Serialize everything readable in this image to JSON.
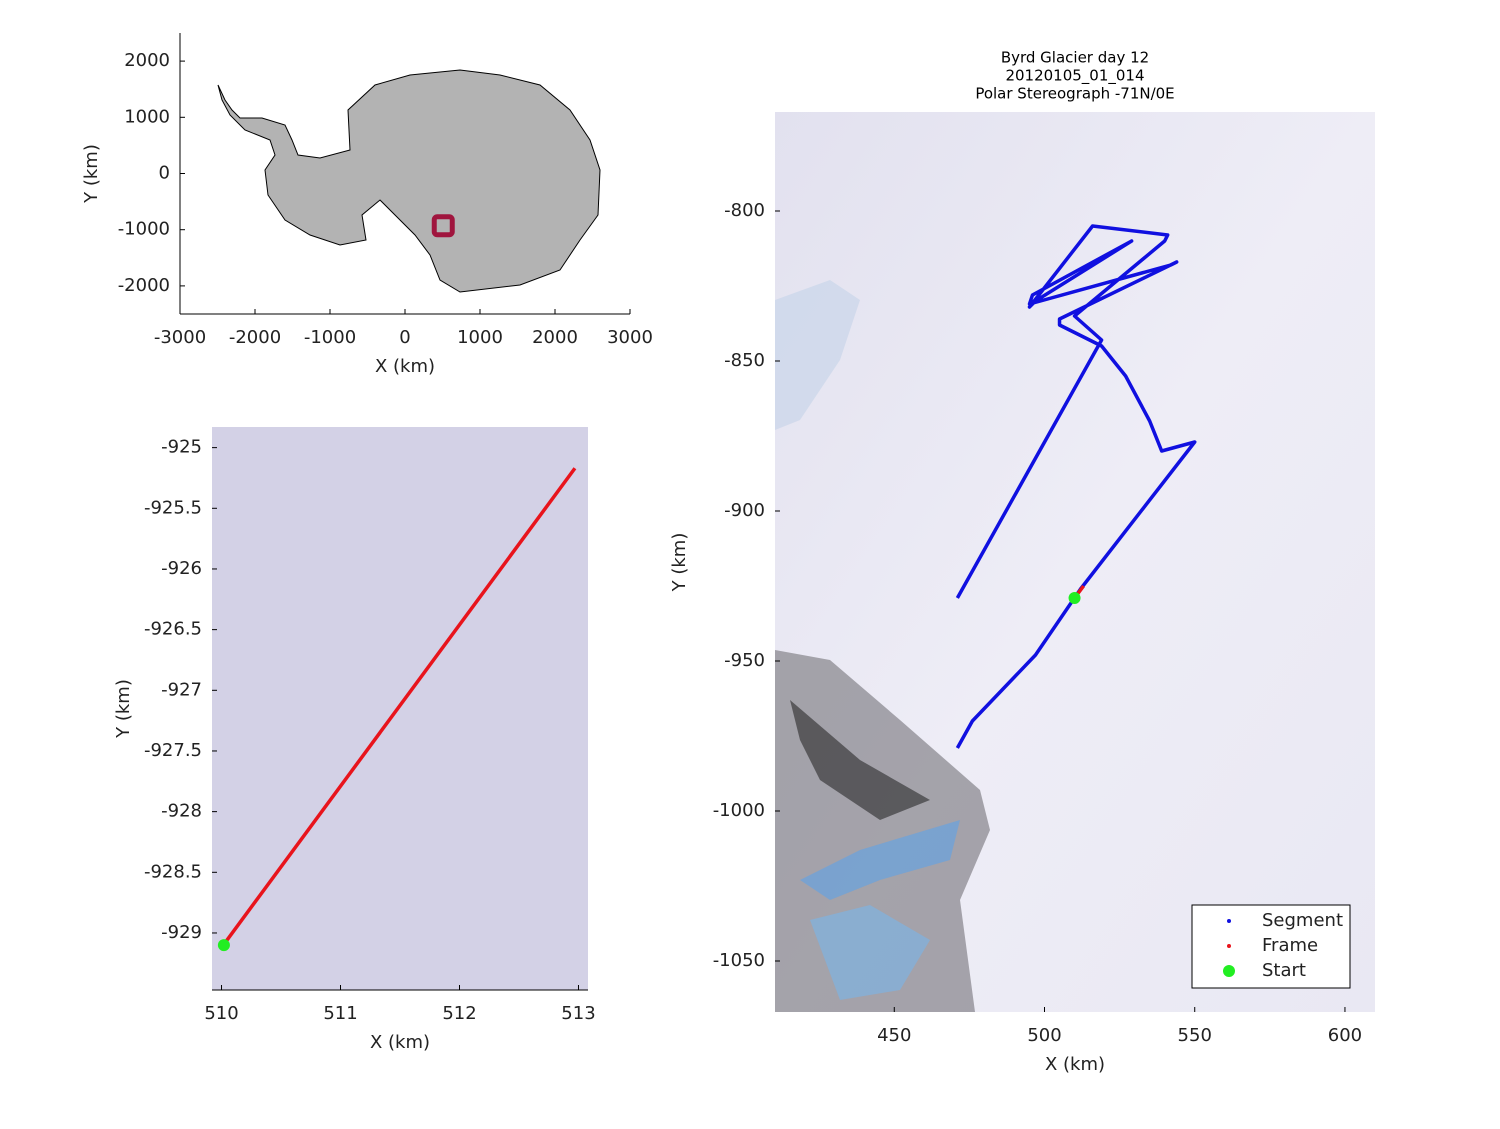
{
  "chart_data": [
    {
      "type": "map",
      "xlabel": "X (km)",
      "ylabel": "Y (km)",
      "xlim": [
        -3000,
        3000
      ],
      "ylim": [
        -2500,
        2500
      ],
      "xticks": [
        -3000,
        -2000,
        -1000,
        0,
        1000,
        2000,
        3000
      ],
      "yticks": [
        -2000,
        -1000,
        0,
        1000,
        2000
      ],
      "series": [
        {
          "color": "#a0153e",
          "mode": "square",
          "x": [
            510
          ],
          "values": [
            -929
          ]
        }
      ]
    },
    {
      "type": "line",
      "xlabel": "X (km)",
      "ylabel": "Y (km)",
      "xlim": [
        509.92,
        513.08
      ],
      "ylim": [
        -929.47,
        -924.83
      ],
      "xticks": [
        510,
        511,
        512,
        513
      ],
      "yticks": [
        -925,
        -925.5,
        -926,
        -926.5,
        -927,
        -927.5,
        -928,
        -928.5,
        -929
      ],
      "series": [
        {
          "color": "#e8141c",
          "mode": "line",
          "x": [
            510.03,
            512.97
          ],
          "values": [
            -929.08,
            -925.17
          ]
        },
        {
          "color": "#22ee22",
          "mode": "marker",
          "x": [
            510.02
          ],
          "values": [
            -929.1
          ]
        }
      ]
    },
    {
      "type": "line",
      "title": [
        "Byrd Glacier day 12",
        "20120105_01_014",
        "Polar Stereograph -71N/0E"
      ],
      "xlabel": "X (km)",
      "ylabel": "Y (km)",
      "xlim": [
        410.3,
        610
      ],
      "ylim": [
        -1067,
        -767
      ],
      "xticks": [
        450,
        500,
        550,
        600
      ],
      "yticks": [
        -800,
        -850,
        -900,
        -950,
        -1000,
        -1050
      ],
      "legend": "southeast",
      "series": [
        {
          "name": "Segment",
          "color": "#1010e0",
          "mode": "line",
          "x": [
            471,
            476,
            497,
            512,
            550,
            539,
            535,
            527,
            519,
            505,
            505,
            544,
            542,
            495,
            496,
            529,
            497,
            495,
            516,
            541,
            540,
            510,
            519,
            471
          ],
          "values": [
            -979,
            -970,
            -948,
            -926,
            -877,
            -880,
            -870,
            -855,
            -845,
            -838,
            -836,
            -817,
            -818,
            -831,
            -828,
            -810,
            -830,
            -832,
            -805,
            -808,
            -810,
            -835,
            -843,
            -929
          ]
        },
        {
          "name": "Frame",
          "color": "#e8141c",
          "mode": "line",
          "x": [
            510,
            513
          ],
          "values": [
            -929,
            -925
          ]
        },
        {
          "name": "Start",
          "color": "#22ee22",
          "mode": "marker",
          "x": [
            510
          ],
          "values": [
            -929
          ]
        }
      ]
    }
  ]
}
